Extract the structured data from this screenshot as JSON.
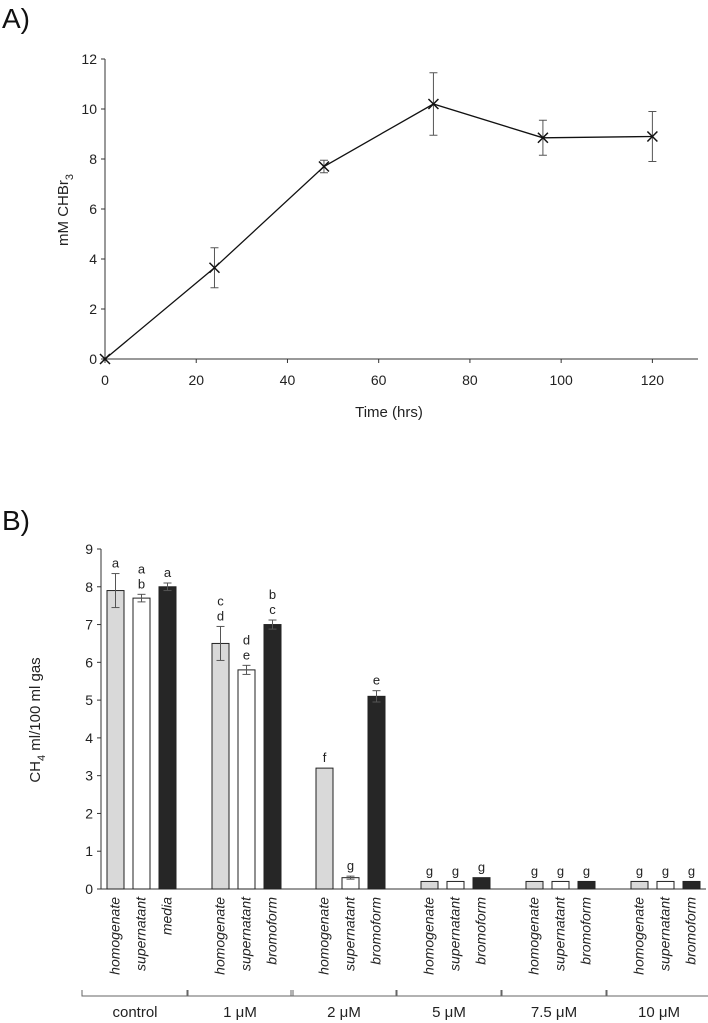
{
  "chart_data": [
    {
      "panel": "A)",
      "type": "line",
      "title": "",
      "xlabel": "Time (hrs)",
      "ylabel_main": "mM CHBr",
      "ylabel_sub": "3",
      "xlim": [
        0,
        130
      ],
      "ylim": [
        0,
        12
      ],
      "xticks": [
        0,
        20,
        40,
        60,
        80,
        100,
        120
      ],
      "yticks": [
        0,
        2,
        4,
        6,
        8,
        10,
        12
      ],
      "marker": "x",
      "series": [
        {
          "name": "CHBr3",
          "x": [
            0,
            24,
            48,
            72,
            96,
            120
          ],
          "y": [
            0,
            3.65,
            7.7,
            10.2,
            8.85,
            8.9
          ],
          "err": [
            0,
            0.8,
            0.25,
            1.25,
            0.7,
            1.0
          ]
        }
      ]
    },
    {
      "panel": "B)",
      "type": "bar",
      "title": "",
      "ylabel_main": "CH",
      "ylabel_sub": "4",
      "ylabel_rest": " ml/100 ml gas",
      "ylim": [
        0,
        9
      ],
      "yticks": [
        0,
        1,
        2,
        3,
        4,
        5,
        6,
        7,
        8,
        9
      ],
      "colors": {
        "homogenate": "#d9d9d9",
        "supernatant": "#ffffff",
        "bromoform": "#262626"
      },
      "groups": [
        {
          "label": "control",
          "bars": [
            {
              "label": "homogenate",
              "kind": "homogenate",
              "value": 7.9,
              "err": 0.45,
              "sig": "a"
            },
            {
              "label": "supernatant",
              "kind": "supernatant",
              "value": 7.7,
              "err": 0.1,
              "sig": "a\nb"
            },
            {
              "label": "media",
              "kind": "bromoform",
              "value": 8.0,
              "err": 0.1,
              "sig": "a"
            }
          ]
        },
        {
          "label": "1 μM",
          "bars": [
            {
              "label": "homogenate",
              "kind": "homogenate",
              "value": 6.5,
              "err": 0.45,
              "sig": "c\nd"
            },
            {
              "label": "supernatant",
              "kind": "supernatant",
              "value": 5.8,
              "err": 0.12,
              "sig": "d\ne"
            },
            {
              "label": "bromoform",
              "kind": "bromoform",
              "value": 7.0,
              "err": 0.12,
              "sig": "b\nc"
            }
          ]
        },
        {
          "label": "2 μM",
          "bars": [
            {
              "label": "homogenate",
              "kind": "homogenate",
              "value": 3.2,
              "err": 0,
              "sig": "f"
            },
            {
              "label": "supernatant",
              "kind": "supernatant",
              "value": 0.3,
              "err": 0.04,
              "sig": "g"
            },
            {
              "label": "bromoform",
              "kind": "bromoform",
              "value": 5.1,
              "err": 0.15,
              "sig": "e"
            }
          ]
        },
        {
          "label": "5 μM",
          "bars": [
            {
              "label": "homogenate",
              "kind": "homogenate",
              "value": 0.2,
              "err": 0,
              "sig": "g"
            },
            {
              "label": "supernatant",
              "kind": "supernatant",
              "value": 0.2,
              "err": 0,
              "sig": "g"
            },
            {
              "label": "bromoform",
              "kind": "bromoform",
              "value": 0.3,
              "err": 0,
              "sig": "g"
            }
          ]
        },
        {
          "label": "7.5 μM",
          "bars": [
            {
              "label": "homogenate",
              "kind": "homogenate",
              "value": 0.2,
              "err": 0,
              "sig": "g"
            },
            {
              "label": "supernatant",
              "kind": "supernatant",
              "value": 0.2,
              "err": 0,
              "sig": "g"
            },
            {
              "label": "bromoform",
              "kind": "bromoform",
              "value": 0.2,
              "err": 0,
              "sig": "g"
            }
          ]
        },
        {
          "label": "10 μM",
          "bars": [
            {
              "label": "homogenate",
              "kind": "homogenate",
              "value": 0.2,
              "err": 0,
              "sig": "g"
            },
            {
              "label": "supernatant",
              "kind": "supernatant",
              "value": 0.2,
              "err": 0,
              "sig": "g"
            },
            {
              "label": "bromoform",
              "kind": "bromoform",
              "value": 0.2,
              "err": 0,
              "sig": "g"
            }
          ]
        }
      ]
    }
  ]
}
